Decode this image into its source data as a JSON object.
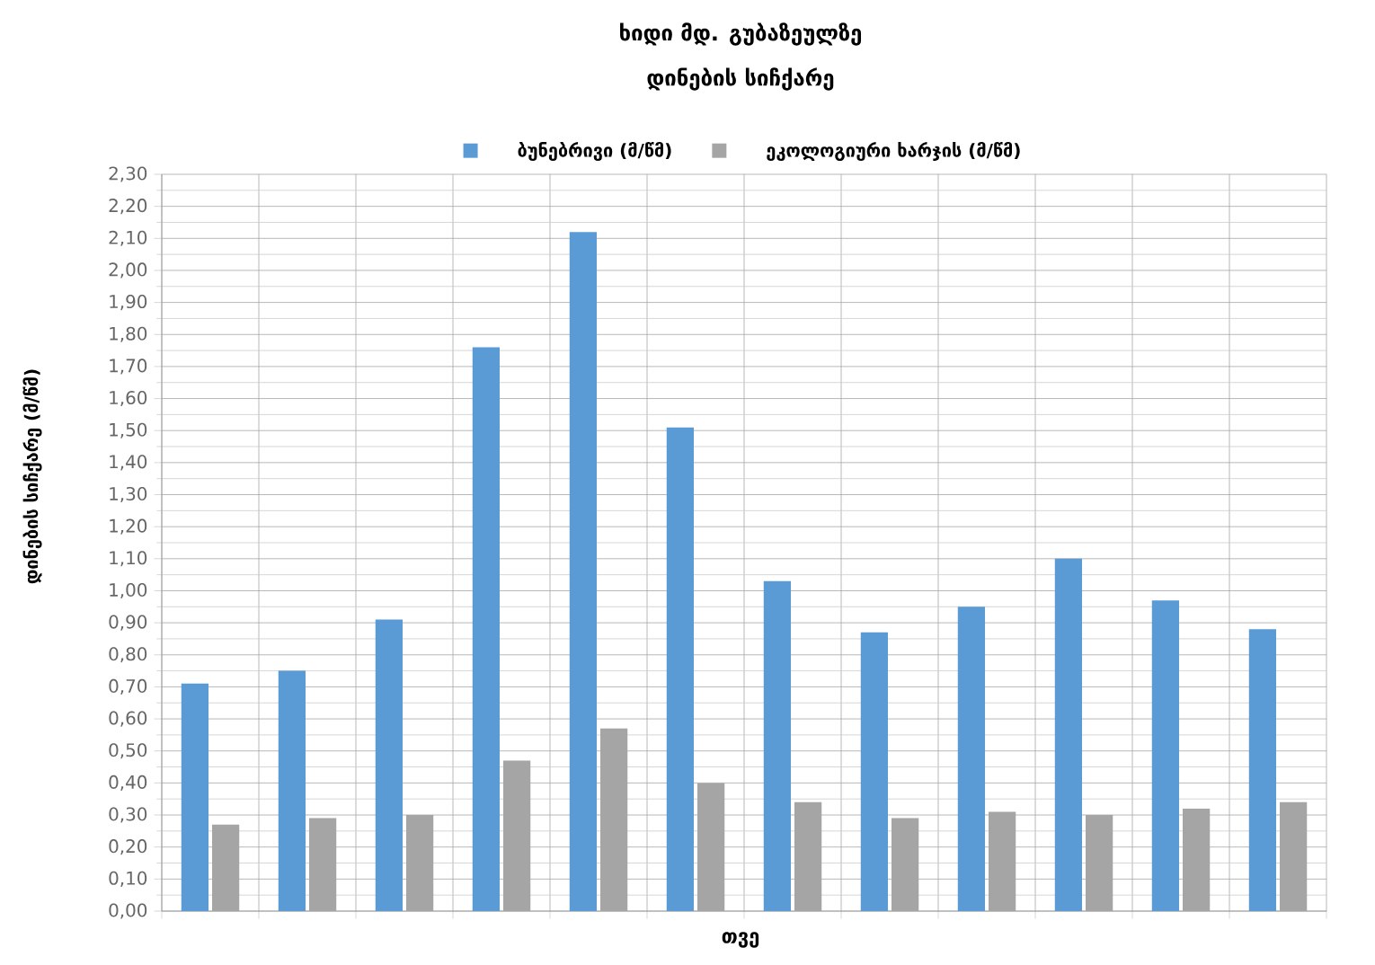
{
  "chart_data": {
    "type": "bar",
    "title": "ხიდი მდ. გუბაზეულზე",
    "subtitle": "დინების სიჩქარე",
    "xlabel": "თვე",
    "ylabel": "დინების სიჩქარე (მ/წმ)",
    "categories": [
      null,
      null,
      null,
      null,
      null,
      null,
      null,
      null,
      null,
      null,
      null,
      null
    ],
    "series": [
      {
        "name": "ბუნებრივი (მ/წმ)",
        "color": "#5b9bd5",
        "values": [
          0.71,
          0.75,
          0.91,
          1.76,
          2.12,
          1.51,
          1.03,
          0.87,
          0.95,
          1.1,
          0.97,
          0.88
        ]
      },
      {
        "name": "ეკოლოგიური ხარჯის (მ/წმ)",
        "color": "#a5a5a5",
        "values": [
          0.27,
          0.29,
          0.3,
          0.47,
          0.57,
          0.4,
          0.34,
          0.29,
          0.31,
          0.3,
          0.32,
          0.34
        ]
      }
    ],
    "ylim": [
      0,
      2.3
    ],
    "yticks": [
      {
        "value": 0,
        "label": "0,00"
      },
      {
        "value": 0.1,
        "label": "0,10"
      },
      {
        "value": 0.2,
        "label": "0,20"
      },
      {
        "value": 0.3,
        "label": "0,30"
      },
      {
        "value": 0.4,
        "label": "0,40"
      },
      {
        "value": 0.5,
        "label": "0,50"
      },
      {
        "value": 0.6,
        "label": "0,60"
      },
      {
        "value": 0.7,
        "label": "0,70"
      },
      {
        "value": 0.8,
        "label": "0,80"
      },
      {
        "value": 0.9,
        "label": "0,90"
      },
      {
        "value": 1.0,
        "label": "1,00"
      },
      {
        "value": 1.1,
        "label": "1,10"
      },
      {
        "value": 1.2,
        "label": "1,20"
      },
      {
        "value": 1.3,
        "label": "1,30"
      },
      {
        "value": 1.4,
        "label": "1,40"
      },
      {
        "value": 1.5,
        "label": "1,50"
      },
      {
        "value": 1.6,
        "label": "1,60"
      },
      {
        "value": 1.7,
        "label": "1,70"
      },
      {
        "value": 1.8,
        "label": "1,80"
      },
      {
        "value": 1.9,
        "label": "1,90"
      },
      {
        "value": 2.0,
        "label": "2,00"
      },
      {
        "value": 2.1,
        "label": "2,10"
      },
      {
        "value": 2.2,
        "label": "2,20"
      },
      {
        "value": 2.3,
        "label": "2,30"
      }
    ],
    "grid": true,
    "legend": "top"
  }
}
